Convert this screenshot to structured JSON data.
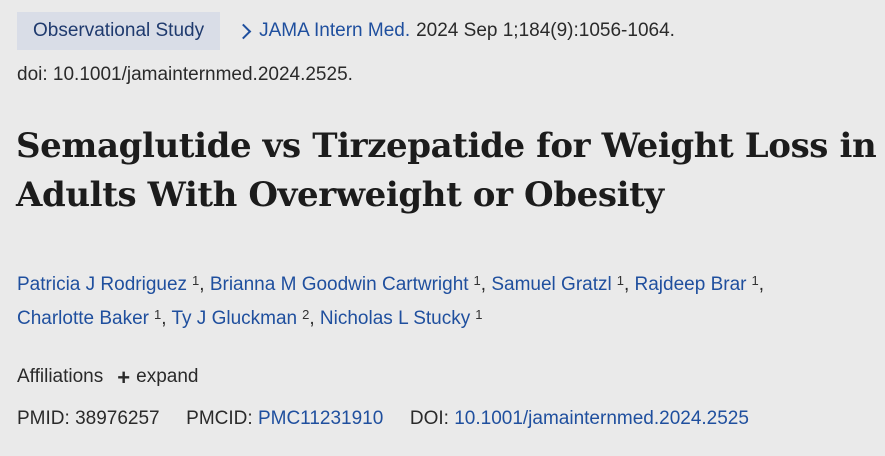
{
  "article_type": "Observational Study",
  "journal": {
    "name": "JAMA Intern Med.",
    "citation": "2024 Sep 1;184(9):1056-1064."
  },
  "doi_line": "doi: 10.1001/jamainternmed.2024.2525.",
  "title": "Semaglutide vs Tirzepatide for Weight Loss in Adults With Overweight or Obesity",
  "authors": [
    {
      "name": "Patricia J Rodriguez",
      "aff": "1"
    },
    {
      "name": "Brianna M Goodwin Cartwright",
      "aff": "1"
    },
    {
      "name": "Samuel Gratzl",
      "aff": "1"
    },
    {
      "name": "Rajdeep Brar",
      "aff": "1"
    },
    {
      "name": "Charlotte Baker",
      "aff": "1"
    },
    {
      "name": "Ty J Gluckman",
      "aff": "2"
    },
    {
      "name": "Nicholas L Stucky",
      "aff": "1"
    }
  ],
  "affiliations": {
    "label": "Affiliations",
    "toggle_label": "expand",
    "toggle_icon": "plus-icon"
  },
  "ids": {
    "pmid_label": "PMID:",
    "pmid_value": "38976257",
    "pmcid_label": "PMCID:",
    "pmcid_value": "PMC11231910",
    "doi_label": "DOI:",
    "doi_value": "10.1001/jamainternmed.2024.2525"
  },
  "colors": {
    "background": "#eaeaea",
    "link": "#1f4f9e",
    "badge_bg": "#d9dde7",
    "badge_text": "#1f3a6e"
  }
}
